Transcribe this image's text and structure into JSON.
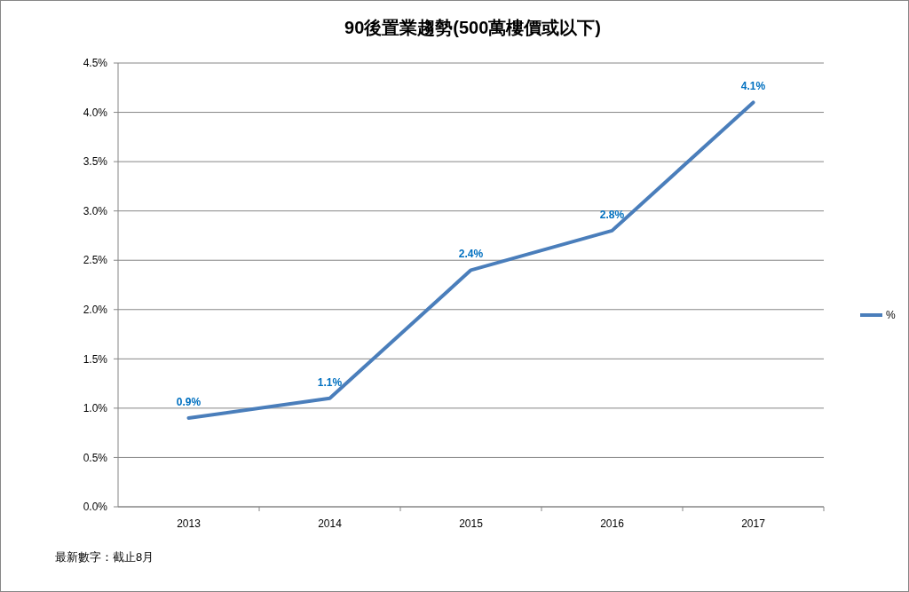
{
  "chart_data": {
    "type": "line",
    "title": "90後置業趨勢(500萬樓價或以下)",
    "categories": [
      "2013",
      "2014",
      "2015",
      "2016",
      "2017"
    ],
    "series": [
      {
        "name": "%",
        "color": "#4a7ebb",
        "values": [
          0.9,
          1.1,
          2.4,
          2.8,
          4.1
        ],
        "value_labels": [
          "0.9%",
          "1.1%",
          "2.4%",
          "2.8%",
          "4.1%"
        ]
      }
    ],
    "ylim": [
      0,
      4.5
    ],
    "yticks": [
      {
        "value": 0,
        "label": "0.0%"
      },
      {
        "value": 0.5,
        "label": "0.5%"
      },
      {
        "value": 1,
        "label": "1.0%"
      },
      {
        "value": 1.5,
        "label": "1.5%"
      },
      {
        "value": 2,
        "label": "2.0%"
      },
      {
        "value": 2.5,
        "label": "2.5%"
      },
      {
        "value": 3,
        "label": "3.0%"
      },
      {
        "value": 3.5,
        "label": "3.5%"
      },
      {
        "value": 4,
        "label": "4.0%"
      },
      {
        "value": 4.5,
        "label": "4.5%"
      }
    ],
    "grid": "y",
    "legend": "right",
    "marker": "none",
    "line_style": "solid",
    "annotations": [
      "最新數字：截止8月"
    ]
  }
}
